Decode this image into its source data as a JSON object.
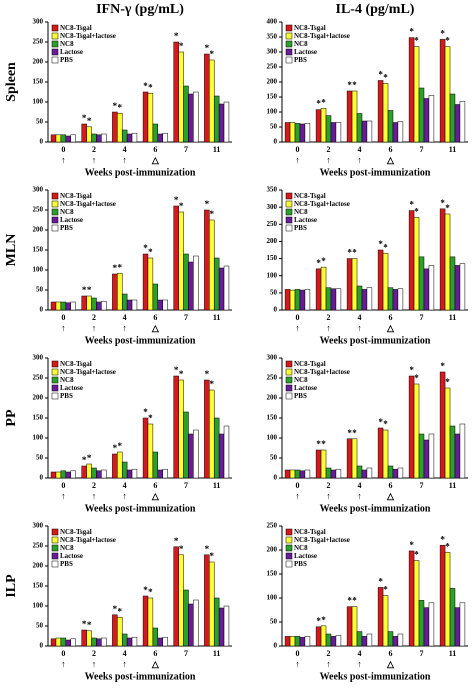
{
  "column_titles": [
    "IFN-γ (pg/mL)",
    "IL-4 (pg/mL)"
  ],
  "row_labels": [
    "Spleen",
    "MLN",
    "PP",
    "ILP"
  ],
  "chart_data": [
    {
      "type": "bar",
      "categories": [
        "0",
        "2",
        "4",
        "6",
        "7",
        "11"
      ],
      "markers": [
        "↑",
        "↑",
        "↑",
        "△",
        null,
        null
      ],
      "xlabel": "Weeks post-immunization",
      "ylim": [
        0,
        300
      ],
      "yticks": [
        0,
        50,
        100,
        150,
        200,
        250,
        300
      ],
      "series": [
        {
          "name": "NC8-Tsgal",
          "color": "#d7191c",
          "values": [
            18,
            45,
            75,
            125,
            250,
            220
          ],
          "significance": [
            null,
            "*",
            "*",
            "*",
            "*",
            "*"
          ]
        },
        {
          "name": "NC8-Tsgal+lactose",
          "color": "#ffff33",
          "values": [
            18,
            38,
            72,
            122,
            225,
            205
          ],
          "significance": [
            null,
            "*",
            "*",
            "*",
            "*",
            "*"
          ]
        },
        {
          "name": "NC8",
          "color": "#2ca02c",
          "values": [
            18,
            20,
            30,
            45,
            140,
            115
          ]
        },
        {
          "name": "Lactose",
          "color": "#6a1b9a",
          "values": [
            15,
            18,
            20,
            20,
            120,
            95
          ]
        },
        {
          "name": "PBS",
          "color": "#ffffff",
          "values": [
            18,
            20,
            22,
            22,
            125,
            100
          ]
        }
      ]
    },
    {
      "type": "bar",
      "categories": [
        "0",
        "2",
        "4",
        "6",
        "7",
        "11"
      ],
      "markers": [
        "↑",
        "↑",
        "↑",
        "△",
        null,
        null
      ],
      "xlabel": "Weeks post-immunization",
      "ylim": [
        0,
        400
      ],
      "yticks": [
        0,
        50,
        100,
        150,
        200,
        250,
        300,
        350,
        400
      ],
      "series": [
        {
          "name": "NC8-Tsgal",
          "color": "#d7191c",
          "values": [
            65,
            108,
            170,
            205,
            348,
            342
          ],
          "significance": [
            null,
            "*",
            "*",
            "*",
            "*",
            "*"
          ]
        },
        {
          "name": "NC8-Tsgal+lactose",
          "color": "#ffff33",
          "values": [
            65,
            112,
            170,
            195,
            318,
            318
          ],
          "significance": [
            null,
            "*",
            "*",
            "*",
            "*",
            "*"
          ]
        },
        {
          "name": "NC8",
          "color": "#2ca02c",
          "values": [
            62,
            88,
            95,
            105,
            180,
            160
          ]
        },
        {
          "name": "Lactose",
          "color": "#6a1b9a",
          "values": [
            60,
            65,
            70,
            65,
            145,
            125
          ]
        },
        {
          "name": "PBS",
          "color": "#ffffff",
          "values": [
            62,
            65,
            70,
            68,
            155,
            135
          ]
        }
      ]
    },
    {
      "type": "bar",
      "categories": [
        "0",
        "2",
        "4",
        "6",
        "7",
        "11"
      ],
      "markers": [
        "↑",
        "↑",
        "↑",
        "△",
        null,
        null
      ],
      "xlabel": "Weeks post-immunization",
      "ylim": [
        0,
        300
      ],
      "yticks": [
        0,
        50,
        100,
        150,
        200,
        250,
        300
      ],
      "series": [
        {
          "name": "NC8-Tsgal",
          "color": "#d7191c",
          "values": [
            20,
            35,
            90,
            140,
            260,
            250
          ],
          "significance": [
            null,
            "*",
            "*",
            "*",
            "*",
            "*"
          ]
        },
        {
          "name": "NC8-Tsgal+lactose",
          "color": "#ffff33",
          "values": [
            20,
            35,
            92,
            130,
            245,
            225
          ],
          "significance": [
            null,
            "*",
            "*",
            "*",
            "*",
            "*"
          ]
        },
        {
          "name": "NC8",
          "color": "#2ca02c",
          "values": [
            20,
            30,
            40,
            65,
            140,
            130
          ]
        },
        {
          "name": "Lactose",
          "color": "#6a1b9a",
          "values": [
            18,
            20,
            25,
            25,
            120,
            105
          ]
        },
        {
          "name": "PBS",
          "color": "#ffffff",
          "values": [
            20,
            22,
            25,
            25,
            135,
            110
          ]
        }
      ]
    },
    {
      "type": "bar",
      "categories": [
        "0",
        "2",
        "4",
        "6",
        "7",
        "11"
      ],
      "markers": [
        "↑",
        "↑",
        "↑",
        "△",
        null,
        null
      ],
      "xlabel": "Weeks post-immunization",
      "ylim": [
        0,
        350
      ],
      "yticks": [
        0,
        50,
        100,
        150,
        200,
        250,
        300,
        350
      ],
      "series": [
        {
          "name": "NC8-Tsgal",
          "color": "#d7191c",
          "values": [
            60,
            120,
            150,
            175,
            290,
            295
          ],
          "significance": [
            null,
            "*",
            "*",
            "*",
            "*",
            "*"
          ]
        },
        {
          "name": "NC8-Tsgal+lactose",
          "color": "#ffff33",
          "values": [
            58,
            125,
            150,
            165,
            270,
            280
          ],
          "significance": [
            null,
            "*",
            "*",
            "*",
            "*",
            "*"
          ]
        },
        {
          "name": "NC8",
          "color": "#2ca02c",
          "values": [
            60,
            65,
            70,
            65,
            155,
            155
          ]
        },
        {
          "name": "Lactose",
          "color": "#6a1b9a",
          "values": [
            58,
            62,
            60,
            60,
            120,
            130
          ]
        },
        {
          "name": "PBS",
          "color": "#ffffff",
          "values": [
            60,
            62,
            65,
            62,
            130,
            135
          ]
        }
      ]
    },
    {
      "type": "bar",
      "categories": [
        "0",
        "2",
        "4",
        "6",
        "7",
        "11"
      ],
      "markers": [
        "↑",
        "↑",
        "↑",
        "△",
        null,
        null
      ],
      "xlabel": "Weeks post-immunization",
      "ylim": [
        0,
        300
      ],
      "yticks": [
        0,
        50,
        100,
        150,
        200,
        250,
        300
      ],
      "series": [
        {
          "name": "NC8-Tsgal",
          "color": "#d7191c",
          "values": [
            15,
            30,
            60,
            150,
            255,
            245
          ],
          "significance": [
            null,
            "*",
            "*",
            "*",
            "*",
            "*"
          ]
        },
        {
          "name": "NC8-Tsgal+lactose",
          "color": "#ffff33",
          "values": [
            15,
            35,
            65,
            135,
            245,
            220
          ],
          "significance": [
            null,
            "*",
            "*",
            "*",
            "*",
            "*"
          ]
        },
        {
          "name": "NC8",
          "color": "#2ca02c",
          "values": [
            18,
            25,
            40,
            65,
            165,
            150
          ]
        },
        {
          "name": "Lactose",
          "color": "#6a1b9a",
          "values": [
            15,
            18,
            20,
            20,
            110,
            110
          ]
        },
        {
          "name": "PBS",
          "color": "#ffffff",
          "values": [
            18,
            20,
            22,
            22,
            120,
            130
          ]
        }
      ]
    },
    {
      "type": "bar",
      "categories": [
        "0",
        "2",
        "4",
        "6",
        "7",
        "11"
      ],
      "markers": [
        "↑",
        "↑",
        "↑",
        "△",
        null,
        null
      ],
      "xlabel": "Weeks post-immunization",
      "ylim": [
        0,
        300
      ],
      "yticks": [
        0,
        50,
        100,
        150,
        200,
        250,
        300
      ],
      "series": [
        {
          "name": "NC8-Tsgal",
          "color": "#d7191c",
          "values": [
            20,
            70,
            98,
            125,
            255,
            265
          ],
          "significance": [
            null,
            "*",
            "*",
            "*",
            "*",
            "*"
          ]
        },
        {
          "name": "NC8-Tsgal+lactose",
          "color": "#ffff33",
          "values": [
            20,
            70,
            98,
            120,
            235,
            225
          ],
          "significance": [
            null,
            "*",
            "*",
            "*",
            "*",
            "*"
          ]
        },
        {
          "name": "NC8",
          "color": "#2ca02c",
          "values": [
            20,
            25,
            30,
            30,
            110,
            130
          ]
        },
        {
          "name": "Lactose",
          "color": "#6a1b9a",
          "values": [
            18,
            20,
            20,
            22,
            95,
            110
          ]
        },
        {
          "name": "PBS",
          "color": "#ffffff",
          "values": [
            20,
            22,
            25,
            25,
            110,
            135
          ]
        }
      ]
    },
    {
      "type": "bar",
      "categories": [
        "0",
        "2",
        "4",
        "6",
        "7",
        "11"
      ],
      "markers": [
        "↑",
        "↑",
        "↑",
        "△",
        null,
        null
      ],
      "xlabel": "Weeks post-immunization",
      "ylim": [
        0,
        300
      ],
      "yticks": [
        0,
        50,
        100,
        150,
        200,
        250,
        300
      ],
      "series": [
        {
          "name": "NC8-Tsgal",
          "color": "#d7191c",
          "values": [
            18,
            40,
            78,
            125,
            248,
            228
          ],
          "significance": [
            null,
            "*",
            "*",
            "*",
            "*",
            "*"
          ]
        },
        {
          "name": "NC8-Tsgal+lactose",
          "color": "#ffff33",
          "values": [
            20,
            38,
            72,
            120,
            228,
            210
          ],
          "significance": [
            null,
            "*",
            "*",
            "*",
            "*",
            "*"
          ]
        },
        {
          "name": "NC8",
          "color": "#2ca02c",
          "values": [
            20,
            20,
            30,
            45,
            140,
            120
          ]
        },
        {
          "name": "Lactose",
          "color": "#6a1b9a",
          "values": [
            15,
            18,
            20,
            20,
            105,
            95
          ]
        },
        {
          "name": "PBS",
          "color": "#ffffff",
          "values": [
            18,
            20,
            22,
            22,
            115,
            100
          ]
        }
      ]
    },
    {
      "type": "bar",
      "categories": [
        "0",
        "2",
        "4",
        "6",
        "7",
        "11"
      ],
      "markers": [
        "↑",
        "↑",
        "↑",
        "△",
        null,
        null
      ],
      "xlabel": "Weeks post-immunization",
      "ylim": [
        0,
        250
      ],
      "yticks": [
        0,
        50,
        100,
        150,
        200,
        250
      ],
      "series": [
        {
          "name": "NC8-Tsgal",
          "color": "#d7191c",
          "values": [
            20,
            40,
            82,
            122,
            198,
            210
          ],
          "significance": [
            null,
            "*",
            "*",
            "*",
            "*",
            "*"
          ]
        },
        {
          "name": "NC8-Tsgal+lactose",
          "color": "#ffff33",
          "values": [
            20,
            42,
            82,
            105,
            178,
            195
          ],
          "significance": [
            null,
            "*",
            "*",
            "*",
            "*",
            "*"
          ]
        },
        {
          "name": "NC8",
          "color": "#2ca02c",
          "values": [
            20,
            25,
            30,
            30,
            95,
            120
          ]
        },
        {
          "name": "Lactose",
          "color": "#6a1b9a",
          "values": [
            18,
            20,
            20,
            20,
            80,
            80
          ]
        },
        {
          "name": "PBS",
          "color": "#ffffff",
          "values": [
            20,
            22,
            25,
            25,
            90,
            90
          ]
        }
      ]
    }
  ]
}
